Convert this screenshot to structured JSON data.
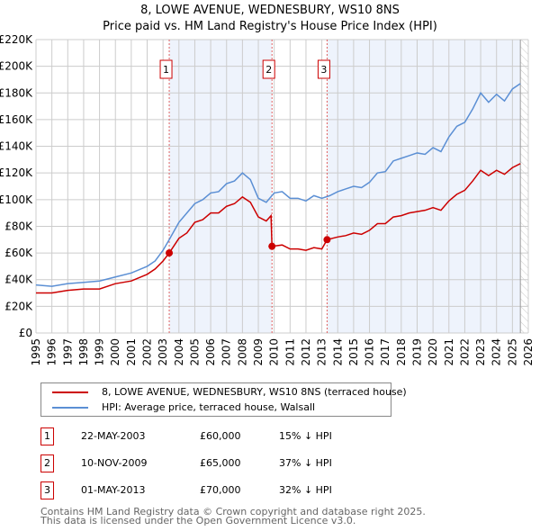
{
  "chart_data": {
    "type": "line",
    "title": "8, LOWE AVENUE, WEDNESBURY, WS10 8NS",
    "subtitle": "Price paid vs. HM Land Registry's House Price Index (HPI)",
    "xlim": [
      1995,
      2026
    ],
    "ylim": [
      0,
      220000
    ],
    "x_ticks": [
      "1995",
      "1996",
      "1997",
      "1998",
      "1999",
      "2000",
      "2001",
      "2002",
      "2003",
      "2004",
      "2005",
      "2006",
      "2007",
      "2008",
      "2009",
      "2010",
      "2011",
      "2012",
      "2013",
      "2014",
      "2015",
      "2016",
      "2017",
      "2018",
      "2019",
      "2020",
      "2021",
      "2022",
      "2023",
      "2024",
      "2025",
      "2026"
    ],
    "y_ticks": [
      {
        "v": 0,
        "label": "£0"
      },
      {
        "v": 20000,
        "label": "£20K"
      },
      {
        "v": 40000,
        "label": "£40K"
      },
      {
        "v": 60000,
        "label": "£60K"
      },
      {
        "v": 80000,
        "label": "£80K"
      },
      {
        "v": 100000,
        "label": "£100K"
      },
      {
        "v": 120000,
        "label": "£120K"
      },
      {
        "v": 140000,
        "label": "£140K"
      },
      {
        "v": 160000,
        "label": "£160K"
      },
      {
        "v": 180000,
        "label": "£180K"
      },
      {
        "v": 200000,
        "label": "£200K"
      },
      {
        "v": 220000,
        "label": "£220K"
      }
    ],
    "grid": true,
    "series": [
      {
        "name": "8, LOWE AVENUE, WEDNESBURY, WS10 8NS (terraced house)",
        "color": "#cc0000",
        "x": [
          1995,
          1996,
          1997,
          1998,
          1999,
          2000,
          2001,
          2002,
          2002.5,
          2003,
          2003.39,
          2004,
          2004.5,
          2005,
          2005.5,
          2006,
          2006.5,
          2007,
          2007.5,
          2008,
          2008.5,
          2009,
          2009.5,
          2009.8,
          2009.86,
          2010.5,
          2011,
          2011.5,
          2012,
          2012.5,
          2013,
          2013.33,
          2014,
          2014.5,
          2015,
          2015.5,
          2016,
          2016.5,
          2017,
          2017.5,
          2018,
          2018.5,
          2019,
          2019.5,
          2020,
          2020.5,
          2021,
          2021.5,
          2022,
          2022.5,
          2023,
          2023.5,
          2024,
          2024.5,
          2025,
          2025.5
        ],
        "y": [
          30000,
          30000,
          32000,
          33000,
          33000,
          37000,
          39000,
          44000,
          48000,
          54000,
          60000,
          71000,
          75000,
          83000,
          85000,
          90000,
          90000,
          95000,
          97000,
          102000,
          98000,
          87000,
          84000,
          88000,
          65000,
          66000,
          63000,
          63000,
          62000,
          64000,
          63000,
          70000,
          72000,
          73000,
          75000,
          74000,
          77000,
          82000,
          82000,
          87000,
          88000,
          90000,
          91000,
          92000,
          94000,
          92000,
          99000,
          104000,
          107000,
          114000,
          122000,
          118000,
          122000,
          119000,
          124000,
          127000
        ]
      },
      {
        "name": "HPI: Average price, terraced house, Walsall",
        "color": "#5b8fd4",
        "x": [
          1995,
          1996,
          1997,
          1998,
          1999,
          2000,
          2001,
          2002,
          2002.5,
          2003,
          2003.39,
          2004,
          2004.5,
          2005,
          2005.5,
          2006,
          2006.5,
          2007,
          2007.5,
          2008,
          2008.5,
          2009,
          2009.5,
          2010,
          2010.5,
          2011,
          2011.5,
          2012,
          2012.5,
          2013,
          2013.5,
          2014,
          2014.5,
          2015,
          2015.5,
          2016,
          2016.5,
          2017,
          2017.5,
          2018,
          2018.5,
          2019,
          2019.5,
          2020,
          2020.5,
          2021,
          2021.5,
          2022,
          2022.5,
          2023,
          2023.5,
          2024,
          2024.5,
          2025,
          2025.5
        ],
        "y": [
          36000,
          35000,
          37000,
          38000,
          39000,
          42000,
          45000,
          50000,
          54000,
          62000,
          70000,
          83000,
          90000,
          97000,
          100000,
          105000,
          106000,
          112000,
          114000,
          120000,
          115000,
          101000,
          98000,
          105000,
          106000,
          101000,
          101000,
          99000,
          103000,
          101000,
          103000,
          106000,
          108000,
          110000,
          109000,
          113000,
          120000,
          121000,
          129000,
          131000,
          133000,
          135000,
          134000,
          139000,
          136000,
          147000,
          155000,
          158000,
          168000,
          180000,
          173000,
          179000,
          174000,
          183000,
          187000
        ]
      }
    ],
    "sales": [
      {
        "id": "1",
        "date": "22-MAY-2003",
        "x": 2003.39,
        "price": "£60,000",
        "value": 60000,
        "hpi": "15% ↓ HPI"
      },
      {
        "id": "2",
        "date": "10-NOV-2009",
        "x": 2009.86,
        "price": "£65,000",
        "value": 65000,
        "hpi": "37% ↓ HPI"
      },
      {
        "id": "3",
        "date": "01-MAY-2013",
        "x": 2013.33,
        "price": "£70,000",
        "value": 70000,
        "hpi": "32% ↓ HPI"
      }
    ],
    "projection_start": 2025.5,
    "legend_placement": "bottom"
  },
  "footer": {
    "line1": "Contains HM Land Registry data © Crown copyright and database right 2025.",
    "line2": "This data is licensed under the Open Government Licence v3.0."
  }
}
